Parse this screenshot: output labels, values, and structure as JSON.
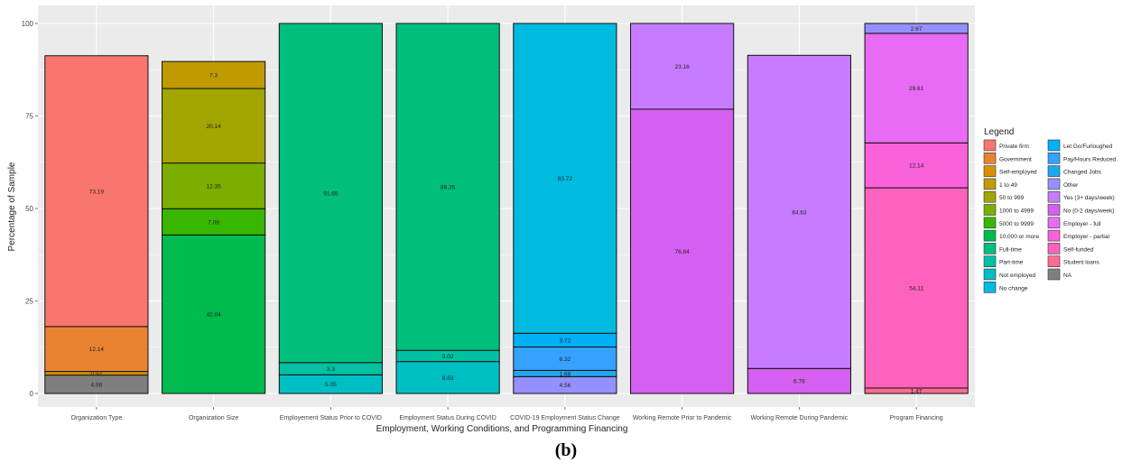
{
  "caption": "(b)",
  "chart_data": {
    "type": "bar",
    "stacked": true,
    "xlabel": "Employment, Working Conditions, and Programming Financing",
    "ylabel": "Percentage of Sample",
    "ylim": [
      0,
      100
    ],
    "yticks": [
      0,
      25,
      50,
      75,
      100
    ],
    "grid": true,
    "legend_title": "Legend",
    "legend_position": "right",
    "categories": [
      "Organization Type",
      "Organization Size",
      "Employement Status Prior to COVID",
      "Employment Status During COVID",
      "COVID-19 Employment Status Change",
      "Working Remote Prior to Pandemic",
      "Working Remote During Pandemic",
      "Program Financing"
    ],
    "legend": [
      {
        "name": "Private firm",
        "color": "#F8766D"
      },
      {
        "name": "Government",
        "color": "#EA8331"
      },
      {
        "name": "Self-employed",
        "color": "#D89000"
      },
      {
        "name": "1 to 49",
        "color": "#C09B00"
      },
      {
        "name": "50 to 999",
        "color": "#A3A500"
      },
      {
        "name": "1000 to 4999",
        "color": "#7CAE00"
      },
      {
        "name": "5000 to 9999",
        "color": "#39B600"
      },
      {
        "name": "10,000 or more",
        "color": "#00BB4E"
      },
      {
        "name": "Full-time",
        "color": "#00BF7D"
      },
      {
        "name": "Part-time",
        "color": "#00C1A3"
      },
      {
        "name": "Not employed",
        "color": "#00BFC4"
      },
      {
        "name": "No change",
        "color": "#00BAE0"
      },
      {
        "name": "Let Go/Furloughed",
        "color": "#00B0F6"
      },
      {
        "name": "Pay/Hours Reduced",
        "color": "#35A2FF"
      },
      {
        "name": "Changed Jobs",
        "color": "#1FA8F0"
      },
      {
        "name": "Other",
        "color": "#9590FF"
      },
      {
        "name": "Yes (3+ days/week)",
        "color": "#C77CFF"
      },
      {
        "name": "No (0-2 days/week)",
        "color": "#D55FF0"
      },
      {
        "name": "Employer - full",
        "color": "#E76BF3"
      },
      {
        "name": "Employer - partial",
        "color": "#FA62DB"
      },
      {
        "name": "Self-funded",
        "color": "#FF62BC"
      },
      {
        "name": "Student loans",
        "color": "#FF6C91"
      },
      {
        "name": "NA",
        "color": "#7F7F7F"
      }
    ],
    "bars": [
      {
        "category": "Organization Type",
        "segments": [
          {
            "series": "NA",
            "value": 4.98,
            "label": "4.98"
          },
          {
            "series": "Self-employed",
            "value": 0.97,
            "label": "0.97"
          },
          {
            "series": "Government",
            "value": 12.14,
            "label": "12.14"
          },
          {
            "series": "Private firm",
            "value": 73.19,
            "label": "73.19"
          }
        ]
      },
      {
        "category": "Organization Size",
        "segments": [
          {
            "series": "10,000 or more",
            "value": 42.84,
            "label": "42.84"
          },
          {
            "series": "5000 to 9999",
            "value": 7.09,
            "label": "7.09"
          },
          {
            "series": "1000 to 4999",
            "value": 12.35,
            "label": "12.35"
          },
          {
            "series": "50 to 999",
            "value": 20.14,
            "label": "20.14"
          },
          {
            "series": "1 to 49",
            "value": 7.3,
            "label": "7.3"
          }
        ]
      },
      {
        "category": "Employement Status Prior to COVID",
        "segments": [
          {
            "series": "Not employed",
            "value": 5.05,
            "label": "5.05"
          },
          {
            "series": "Part-time",
            "value": 3.3,
            "label": "3.3"
          },
          {
            "series": "Full-time",
            "value": 91.65,
            "label": "91.65"
          }
        ]
      },
      {
        "category": "Employment Status During COVID",
        "segments": [
          {
            "series": "Not employed",
            "value": 8.63,
            "label": "8.63"
          },
          {
            "series": "Part-time",
            "value": 3.02,
            "label": "3.02"
          },
          {
            "series": "Full-time",
            "value": 88.35,
            "label": "88.35"
          }
        ]
      },
      {
        "category": "COVID-19 Employment Status Change",
        "segments": [
          {
            "series": "Other",
            "value": 4.56,
            "label": "4.56"
          },
          {
            "series": "Changed Jobs",
            "value": 1.68,
            "label": "1.68"
          },
          {
            "series": "Pay/Hours Reduced",
            "value": 6.32,
            "label": "6.32"
          },
          {
            "series": "Let Go/Furloughed",
            "value": 3.72,
            "label": "3.72"
          },
          {
            "series": "No change",
            "value": 83.72,
            "label": "83.72"
          }
        ]
      },
      {
        "category": "Working Remote Prior to Pandemic",
        "segments": [
          {
            "series": "No (0-2 days/week)",
            "value": 76.84,
            "label": "76.84"
          },
          {
            "series": "Yes (3+ days/week)",
            "value": 23.16,
            "label": "23.16"
          }
        ]
      },
      {
        "category": "Working Remote During Pandemic",
        "segments": [
          {
            "series": "No (0-2 days/week)",
            "value": 6.76,
            "label": "6.76"
          },
          {
            "series": "Yes (3+ days/week)",
            "value": 84.63,
            "label": "84.63"
          }
        ]
      },
      {
        "category": "Program Financing",
        "segments": [
          {
            "series": "Student loans",
            "value": 1.47,
            "label": "1.47"
          },
          {
            "series": "Self-funded",
            "value": 54.11,
            "label": "54.11"
          },
          {
            "series": "Employer - partial",
            "value": 12.14,
            "label": "12.14"
          },
          {
            "series": "Employer - full",
            "value": 29.61,
            "label": "29.61"
          },
          {
            "series": "Other",
            "value": 2.67,
            "label": "2.67"
          }
        ]
      }
    ]
  }
}
